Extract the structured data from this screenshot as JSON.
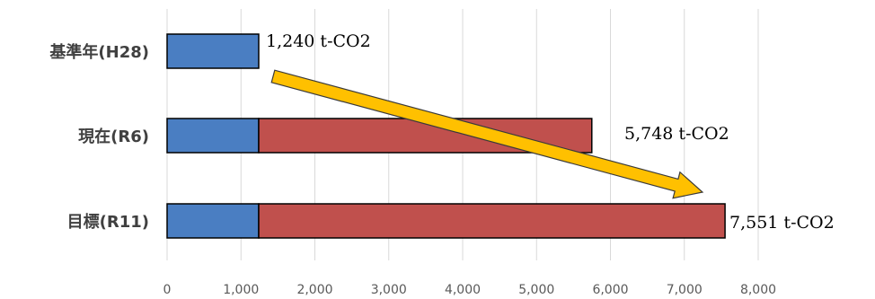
{
  "chart_data": {
    "type": "bar",
    "orientation": "horizontal",
    "stacked": true,
    "categories": [
      "基準年(H28)",
      "現在(R6)",
      "目標(R11)"
    ],
    "series": [
      {
        "values": [
          1240,
          1240,
          1240
        ],
        "color": "#4a7ec2"
      },
      {
        "values": [
          0,
          4508,
          6311
        ],
        "color": "#c0504d"
      }
    ],
    "data_labels": [
      "1,240 t-CO2",
      "5,748 t-CO2",
      "7,551 t-CO2"
    ],
    "xlim": [
      0,
      8000
    ],
    "xticks": [
      0,
      1000,
      2000,
      3000,
      4000,
      5000,
      6000,
      7000,
      8000
    ],
    "xtick_labels": [
      "0",
      "1,000",
      "2,000",
      "3,000",
      "4,000",
      "5,000",
      "6,000",
      "7,000",
      "8,000"
    ],
    "grid": "vertical",
    "legend": "none",
    "annotation": {
      "shape": "arrow",
      "color": "#ffc000",
      "from_category": "基準年(H28)",
      "to_category": "目標(R11)"
    }
  }
}
